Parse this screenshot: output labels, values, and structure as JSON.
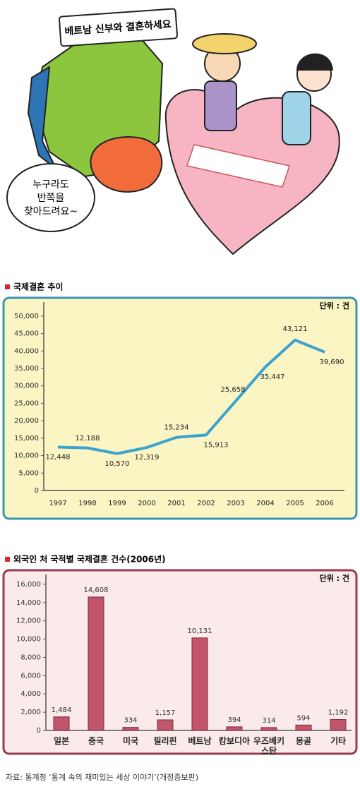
{
  "illustration": {
    "sign": "베트남 신부와 결혼하세요",
    "bubble": [
      "누구라도",
      "반쪽을",
      "찾아드려요~"
    ]
  },
  "chart_data": [
    {
      "type": "line",
      "title": "국제결혼 추이",
      "unit": "단위 : 건",
      "categories": [
        "1997",
        "1998",
        "1999",
        "2000",
        "2001",
        "2002",
        "2003",
        "2004",
        "2005",
        "2006"
      ],
      "values": [
        12448,
        12188,
        10570,
        12319,
        15234,
        15913,
        25658,
        35447,
        43121,
        39690
      ],
      "value_labels": [
        "12,448",
        "12,188",
        "10,570",
        "12,319",
        "15,234",
        "15,913",
        "25,658",
        "35,447",
        "43,121",
        "39,690"
      ],
      "color": "#3ba3cf",
      "ylim": [
        0,
        52000
      ],
      "yticks": [
        0,
        {
          "value": 5000,
          "label": "5,000"
        },
        {
          "value": 10000,
          "label": "10,000"
        },
        {
          "value": 15000,
          "label": "15,000"
        },
        {
          "value": 20000,
          "label": "20,000"
        },
        {
          "value": 25000,
          "label": "25,000"
        },
        {
          "value": 30000,
          "label": "30,000"
        },
        {
          "value": 35000,
          "label": "35,000"
        },
        {
          "value": 40000,
          "label": "40,000"
        },
        {
          "value": 45000,
          "label": "45,000"
        },
        {
          "value": 50000,
          "label": "50,000"
        }
      ],
      "grid": false
    },
    {
      "type": "bar",
      "title": "외국인 처 국적별 국제결혼 건수(2006년)",
      "unit": "단위 : 건",
      "categories": [
        "일본",
        "중국",
        "미국",
        "필리핀",
        "베트남",
        "캄보디아",
        "우즈베키스탄",
        "몽골",
        "기타"
      ],
      "values": [
        1484,
        14608,
        334,
        1157,
        10131,
        394,
        314,
        594,
        1192
      ],
      "value_labels": [
        "1,484",
        "14,608",
        "334",
        "1,157",
        "10,131",
        "394",
        "314",
        "594",
        "1,192"
      ],
      "color": "#c2556c",
      "ylim": [
        0,
        17000
      ],
      "yticks": [
        0,
        {
          "value": 2000,
          "label": "2,000"
        },
        {
          "value": 4000,
          "label": "4,000"
        },
        {
          "value": 6000,
          "label": "6,000"
        },
        {
          "value": 8000,
          "label": "8,000"
        },
        {
          "value": 10000,
          "label": "10,000"
        },
        {
          "value": 12000,
          "label": "12,000"
        },
        {
          "value": 14000,
          "label": "14,000"
        },
        {
          "value": 16000,
          "label": "16,000"
        }
      ],
      "grid": false
    }
  ],
  "source": "자료: 통계청 ‘통계 속의 재미있는 세상 이야기’(개정증보판)"
}
